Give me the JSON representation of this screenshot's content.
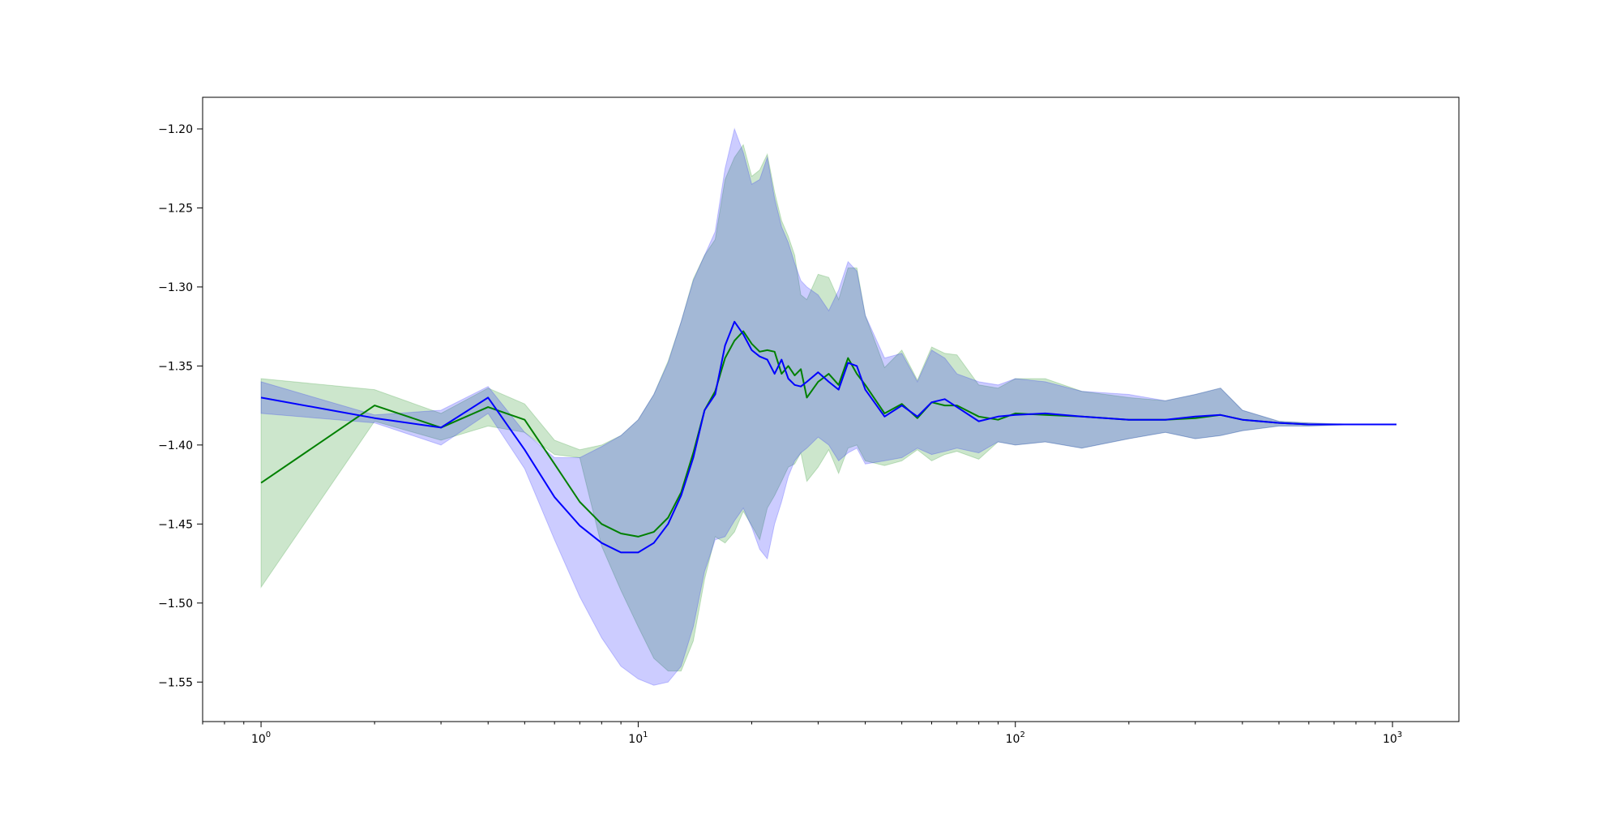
{
  "chart_data": {
    "type": "line",
    "xscale": "log",
    "xlim": [
      0.7,
      1500
    ],
    "ylim": [
      -1.575,
      -1.18
    ],
    "grid": false,
    "legend": "none",
    "x_ticks": [
      {
        "value": 1,
        "base": "10",
        "exp": "0"
      },
      {
        "value": 10,
        "base": "10",
        "exp": "1"
      },
      {
        "value": 100,
        "base": "10",
        "exp": "2"
      },
      {
        "value": 1000,
        "base": "10",
        "exp": "3"
      }
    ],
    "y_ticks": [
      {
        "value": -1.2,
        "label": "−1.20"
      },
      {
        "value": -1.25,
        "label": "−1.25"
      },
      {
        "value": -1.3,
        "label": "−1.30"
      },
      {
        "value": -1.35,
        "label": "−1.35"
      },
      {
        "value": -1.4,
        "label": "−1.40"
      },
      {
        "value": -1.45,
        "label": "−1.45"
      },
      {
        "value": -1.5,
        "label": "−1.50"
      },
      {
        "value": -1.55,
        "label": "−1.55"
      }
    ],
    "series": [
      {
        "color": "#008000",
        "band_color": "#008000",
        "band_opacity": 0.2,
        "x": [
          1,
          2,
          3,
          4,
          5,
          6,
          7,
          8,
          9,
          10,
          11,
          12,
          13,
          14,
          15,
          16,
          17,
          18,
          19,
          20,
          21,
          22,
          23,
          24,
          25,
          26,
          27,
          28,
          30,
          32,
          34,
          36,
          38,
          40,
          45,
          50,
          55,
          60,
          65,
          70,
          80,
          90,
          100,
          120,
          150,
          200,
          250,
          300,
          350,
          400,
          500,
          600,
          800,
          1024
        ],
        "y": [
          -1.424,
          -1.375,
          -1.389,
          -1.376,
          -1.384,
          -1.412,
          -1.436,
          -1.45,
          -1.456,
          -1.458,
          -1.455,
          -1.446,
          -1.43,
          -1.405,
          -1.378,
          -1.366,
          -1.345,
          -1.334,
          -1.328,
          -1.336,
          -1.341,
          -1.34,
          -1.341,
          -1.355,
          -1.35,
          -1.356,
          -1.352,
          -1.37,
          -1.36,
          -1.355,
          -1.362,
          -1.345,
          -1.355,
          -1.362,
          -1.38,
          -1.374,
          -1.383,
          -1.373,
          -1.375,
          -1.375,
          -1.382,
          -1.384,
          -1.38,
          -1.381,
          -1.382,
          -1.384,
          -1.384,
          -1.383,
          -1.381,
          -1.384,
          -1.386,
          -1.387,
          -1.387,
          -1.387
        ],
        "upper": [
          -1.358,
          -1.365,
          -1.38,
          -1.364,
          -1.374,
          -1.397,
          -1.403,
          -1.4,
          -1.394,
          -1.384,
          -1.368,
          -1.347,
          -1.322,
          -1.295,
          -1.28,
          -1.27,
          -1.232,
          -1.218,
          -1.21,
          -1.23,
          -1.226,
          -1.216,
          -1.24,
          -1.258,
          -1.268,
          -1.28,
          -1.305,
          -1.308,
          -1.292,
          -1.294,
          -1.308,
          -1.288,
          -1.288,
          -1.318,
          -1.351,
          -1.34,
          -1.359,
          -1.338,
          -1.342,
          -1.343,
          -1.362,
          -1.364,
          -1.358,
          -1.358,
          -1.366,
          -1.37,
          -1.372,
          -1.368,
          -1.364,
          -1.378,
          -1.385,
          -1.386,
          -1.387,
          -1.387
        ],
        "lower": [
          -1.49,
          -1.385,
          -1.397,
          -1.388,
          -1.392,
          -1.406,
          -1.408,
          -1.464,
          -1.492,
          -1.515,
          -1.535,
          -1.543,
          -1.543,
          -1.524,
          -1.485,
          -1.458,
          -1.462,
          -1.455,
          -1.442,
          -1.451,
          -1.46,
          -1.44,
          -1.432,
          -1.423,
          -1.414,
          -1.412,
          -1.405,
          -1.423,
          -1.414,
          -1.403,
          -1.418,
          -1.402,
          -1.4,
          -1.41,
          -1.413,
          -1.41,
          -1.403,
          -1.41,
          -1.406,
          -1.404,
          -1.409,
          -1.398,
          -1.4,
          -1.398,
          -1.402,
          -1.396,
          -1.392,
          -1.396,
          -1.394,
          -1.391,
          -1.388,
          -1.388,
          -1.387,
          -1.387
        ]
      },
      {
        "color": "#0000ff",
        "band_color": "#0000ff",
        "band_opacity": 0.2,
        "x": [
          1,
          2,
          3,
          4,
          5,
          6,
          7,
          8,
          9,
          10,
          11,
          12,
          13,
          14,
          15,
          16,
          17,
          18,
          19,
          20,
          21,
          22,
          23,
          24,
          25,
          26,
          27,
          28,
          30,
          32,
          34,
          36,
          38,
          40,
          45,
          50,
          55,
          60,
          65,
          70,
          80,
          90,
          100,
          120,
          150,
          200,
          250,
          300,
          350,
          400,
          500,
          600,
          800,
          1024
        ],
        "y": [
          -1.37,
          -1.383,
          -1.389,
          -1.37,
          -1.403,
          -1.433,
          -1.451,
          -1.462,
          -1.468,
          -1.468,
          -1.462,
          -1.45,
          -1.432,
          -1.408,
          -1.378,
          -1.368,
          -1.337,
          -1.322,
          -1.33,
          -1.34,
          -1.344,
          -1.346,
          -1.355,
          -1.346,
          -1.358,
          -1.362,
          -1.363,
          -1.36,
          -1.354,
          -1.36,
          -1.365,
          -1.348,
          -1.35,
          -1.365,
          -1.382,
          -1.375,
          -1.382,
          -1.373,
          -1.371,
          -1.376,
          -1.385,
          -1.382,
          -1.381,
          -1.38,
          -1.382,
          -1.384,
          -1.384,
          -1.382,
          -1.381,
          -1.384,
          -1.386,
          -1.387,
          -1.387,
          -1.387
        ],
        "upper": [
          -1.36,
          -1.381,
          -1.378,
          -1.363,
          -1.392,
          -1.408,
          -1.408,
          -1.401,
          -1.394,
          -1.384,
          -1.368,
          -1.348,
          -1.322,
          -1.296,
          -1.28,
          -1.265,
          -1.225,
          -1.2,
          -1.215,
          -1.235,
          -1.232,
          -1.218,
          -1.244,
          -1.262,
          -1.272,
          -1.285,
          -1.296,
          -1.3,
          -1.305,
          -1.315,
          -1.302,
          -1.284,
          -1.29,
          -1.318,
          -1.345,
          -1.342,
          -1.36,
          -1.34,
          -1.345,
          -1.355,
          -1.36,
          -1.362,
          -1.358,
          -1.36,
          -1.366,
          -1.368,
          -1.372,
          -1.368,
          -1.364,
          -1.378,
          -1.385,
          -1.386,
          -1.387,
          -1.387
        ],
        "lower": [
          -1.38,
          -1.386,
          -1.4,
          -1.38,
          -1.415,
          -1.46,
          -1.496,
          -1.522,
          -1.54,
          -1.548,
          -1.552,
          -1.55,
          -1.54,
          -1.515,
          -1.48,
          -1.46,
          -1.458,
          -1.448,
          -1.44,
          -1.452,
          -1.466,
          -1.472,
          -1.45,
          -1.436,
          -1.42,
          -1.41,
          -1.405,
          -1.402,
          -1.395,
          -1.4,
          -1.41,
          -1.405,
          -1.402,
          -1.412,
          -1.41,
          -1.408,
          -1.402,
          -1.406,
          -1.404,
          -1.402,
          -1.405,
          -1.398,
          -1.4,
          -1.398,
          -1.402,
          -1.396,
          -1.392,
          -1.396,
          -1.394,
          -1.391,
          -1.388,
          -1.388,
          -1.387,
          -1.387
        ]
      }
    ]
  }
}
